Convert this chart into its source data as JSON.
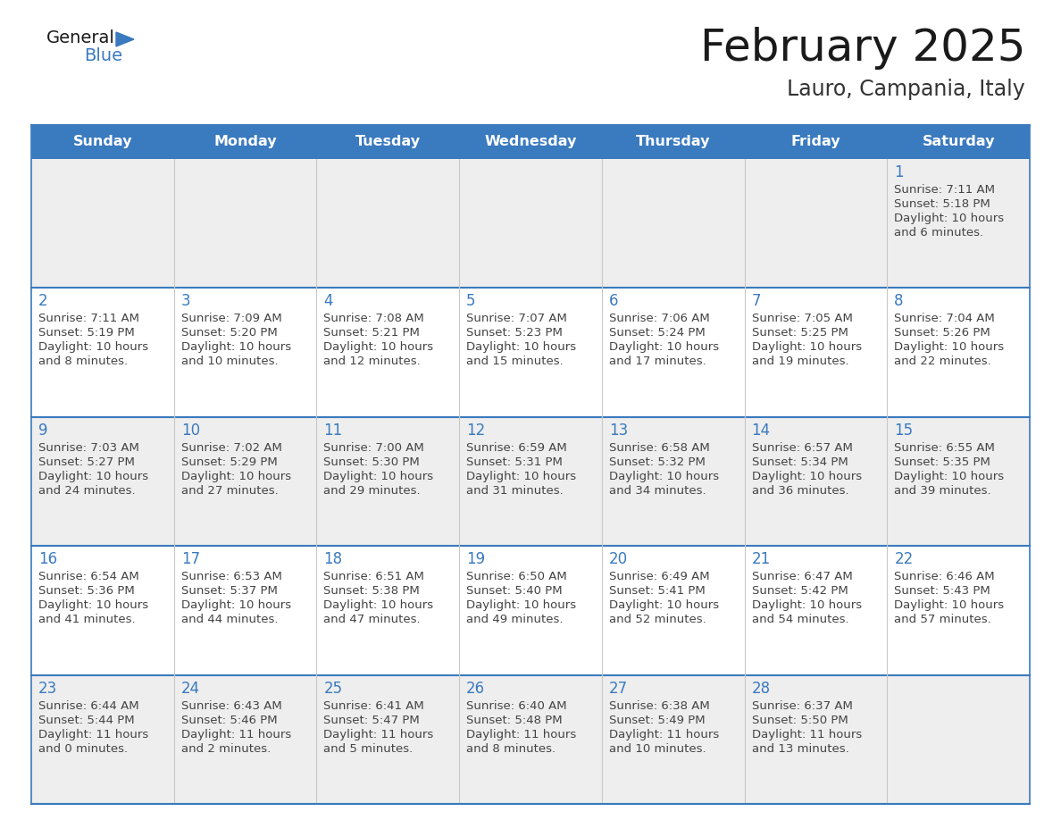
{
  "title": "February 2025",
  "subtitle": "Lauro, Campania, Italy",
  "header_bg": "#3a7abf",
  "header_text_color": "#ffffff",
  "cell_bg_even": "#eeeeee",
  "cell_bg_odd": "#ffffff",
  "grid_color": "#3a7abf",
  "day_names": [
    "Sunday",
    "Monday",
    "Tuesday",
    "Wednesday",
    "Thursday",
    "Friday",
    "Saturday"
  ],
  "title_color": "#1a1a1a",
  "subtitle_color": "#333333",
  "day_number_color": "#3a7abf",
  "cell_text_color": "#444444",
  "logo_general_color": "#1a1a1a",
  "logo_blue_color": "#3a7abf",
  "fig_width": 11.88,
  "fig_height": 9.18,
  "dpi": 100,
  "calendar_data": [
    [
      null,
      null,
      null,
      null,
      null,
      null,
      {
        "day": 1,
        "sunrise": "7:11 AM",
        "sunset": "5:18 PM",
        "daylight_line1": "Daylight: 10 hours",
        "daylight_line2": "and 6 minutes."
      }
    ],
    [
      {
        "day": 2,
        "sunrise": "7:11 AM",
        "sunset": "5:19 PM",
        "daylight_line1": "Daylight: 10 hours",
        "daylight_line2": "and 8 minutes."
      },
      {
        "day": 3,
        "sunrise": "7:09 AM",
        "sunset": "5:20 PM",
        "daylight_line1": "Daylight: 10 hours",
        "daylight_line2": "and 10 minutes."
      },
      {
        "day": 4,
        "sunrise": "7:08 AM",
        "sunset": "5:21 PM",
        "daylight_line1": "Daylight: 10 hours",
        "daylight_line2": "and 12 minutes."
      },
      {
        "day": 5,
        "sunrise": "7:07 AM",
        "sunset": "5:23 PM",
        "daylight_line1": "Daylight: 10 hours",
        "daylight_line2": "and 15 minutes."
      },
      {
        "day": 6,
        "sunrise": "7:06 AM",
        "sunset": "5:24 PM",
        "daylight_line1": "Daylight: 10 hours",
        "daylight_line2": "and 17 minutes."
      },
      {
        "day": 7,
        "sunrise": "7:05 AM",
        "sunset": "5:25 PM",
        "daylight_line1": "Daylight: 10 hours",
        "daylight_line2": "and 19 minutes."
      },
      {
        "day": 8,
        "sunrise": "7:04 AM",
        "sunset": "5:26 PM",
        "daylight_line1": "Daylight: 10 hours",
        "daylight_line2": "and 22 minutes."
      }
    ],
    [
      {
        "day": 9,
        "sunrise": "7:03 AM",
        "sunset": "5:27 PM",
        "daylight_line1": "Daylight: 10 hours",
        "daylight_line2": "and 24 minutes."
      },
      {
        "day": 10,
        "sunrise": "7:02 AM",
        "sunset": "5:29 PM",
        "daylight_line1": "Daylight: 10 hours",
        "daylight_line2": "and 27 minutes."
      },
      {
        "day": 11,
        "sunrise": "7:00 AM",
        "sunset": "5:30 PM",
        "daylight_line1": "Daylight: 10 hours",
        "daylight_line2": "and 29 minutes."
      },
      {
        "day": 12,
        "sunrise": "6:59 AM",
        "sunset": "5:31 PM",
        "daylight_line1": "Daylight: 10 hours",
        "daylight_line2": "and 31 minutes."
      },
      {
        "day": 13,
        "sunrise": "6:58 AM",
        "sunset": "5:32 PM",
        "daylight_line1": "Daylight: 10 hours",
        "daylight_line2": "and 34 minutes."
      },
      {
        "day": 14,
        "sunrise": "6:57 AM",
        "sunset": "5:34 PM",
        "daylight_line1": "Daylight: 10 hours",
        "daylight_line2": "and 36 minutes."
      },
      {
        "day": 15,
        "sunrise": "6:55 AM",
        "sunset": "5:35 PM",
        "daylight_line1": "Daylight: 10 hours",
        "daylight_line2": "and 39 minutes."
      }
    ],
    [
      {
        "day": 16,
        "sunrise": "6:54 AM",
        "sunset": "5:36 PM",
        "daylight_line1": "Daylight: 10 hours",
        "daylight_line2": "and 41 minutes."
      },
      {
        "day": 17,
        "sunrise": "6:53 AM",
        "sunset": "5:37 PM",
        "daylight_line1": "Daylight: 10 hours",
        "daylight_line2": "and 44 minutes."
      },
      {
        "day": 18,
        "sunrise": "6:51 AM",
        "sunset": "5:38 PM",
        "daylight_line1": "Daylight: 10 hours",
        "daylight_line2": "and 47 minutes."
      },
      {
        "day": 19,
        "sunrise": "6:50 AM",
        "sunset": "5:40 PM",
        "daylight_line1": "Daylight: 10 hours",
        "daylight_line2": "and 49 minutes."
      },
      {
        "day": 20,
        "sunrise": "6:49 AM",
        "sunset": "5:41 PM",
        "daylight_line1": "Daylight: 10 hours",
        "daylight_line2": "and 52 minutes."
      },
      {
        "day": 21,
        "sunrise": "6:47 AM",
        "sunset": "5:42 PM",
        "daylight_line1": "Daylight: 10 hours",
        "daylight_line2": "and 54 minutes."
      },
      {
        "day": 22,
        "sunrise": "6:46 AM",
        "sunset": "5:43 PM",
        "daylight_line1": "Daylight: 10 hours",
        "daylight_line2": "and 57 minutes."
      }
    ],
    [
      {
        "day": 23,
        "sunrise": "6:44 AM",
        "sunset": "5:44 PM",
        "daylight_line1": "Daylight: 11 hours",
        "daylight_line2": "and 0 minutes."
      },
      {
        "day": 24,
        "sunrise": "6:43 AM",
        "sunset": "5:46 PM",
        "daylight_line1": "Daylight: 11 hours",
        "daylight_line2": "and 2 minutes."
      },
      {
        "day": 25,
        "sunrise": "6:41 AM",
        "sunset": "5:47 PM",
        "daylight_line1": "Daylight: 11 hours",
        "daylight_line2": "and 5 minutes."
      },
      {
        "day": 26,
        "sunrise": "6:40 AM",
        "sunset": "5:48 PM",
        "daylight_line1": "Daylight: 11 hours",
        "daylight_line2": "and 8 minutes."
      },
      {
        "day": 27,
        "sunrise": "6:38 AM",
        "sunset": "5:49 PM",
        "daylight_line1": "Daylight: 11 hours",
        "daylight_line2": "and 10 minutes."
      },
      {
        "day": 28,
        "sunrise": "6:37 AM",
        "sunset": "5:50 PM",
        "daylight_line1": "Daylight: 11 hours",
        "daylight_line2": "and 13 minutes."
      },
      null
    ]
  ]
}
